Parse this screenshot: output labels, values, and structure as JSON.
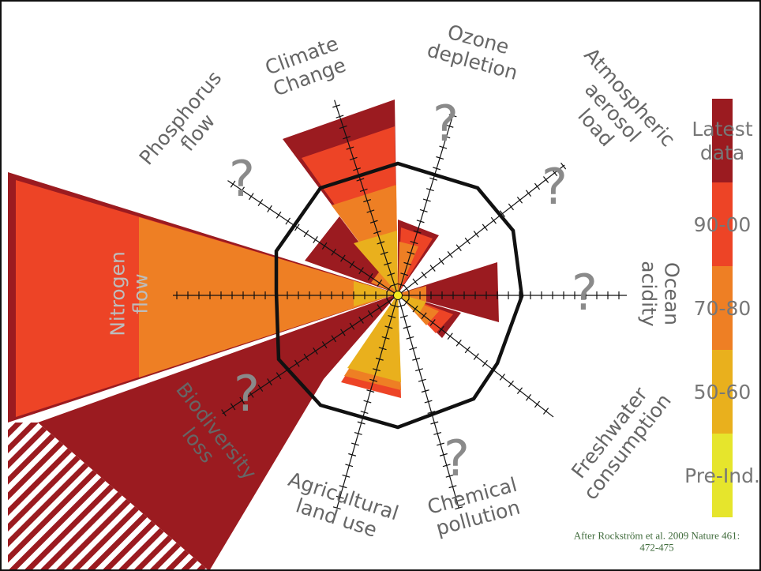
{
  "colors": {
    "latest": "#9b1b20",
    "s9000": "#ed4426",
    "s7080": "#ee7f24",
    "s5060": "#e9b01d",
    "pre": "#e6e52c",
    "boundary": "#111111",
    "axis": "#111111"
  },
  "boundaries": {
    "climate": "Climate Change",
    "ozone": "Ozone depletion",
    "aerosol": "Atmospheric aerosol load",
    "ocean": "Ocean acidity",
    "freshwater": "Freshwater consumption",
    "chemical": "Chemical pollution",
    "landuse": "Agricultural land use",
    "biodiversity": "Biodiversity loss",
    "nitrogen": "Nitrogen flow",
    "phosphorus": "Phosphorus flow"
  },
  "unknown_marker": "?",
  "legend": {
    "items": [
      {
        "label": "Latest data",
        "color": "#9b1b20"
      },
      {
        "label": "90-00",
        "color": "#ed4426"
      },
      {
        "label": "70-80",
        "color": "#ee7f24"
      },
      {
        "label": "50-60",
        "color": "#e9b01d"
      },
      {
        "label": "Pre-Ind.",
        "color": "#e6e52c"
      }
    ]
  },
  "citation": "After Rockström et al. 2009 Nature 461: 472-475"
}
